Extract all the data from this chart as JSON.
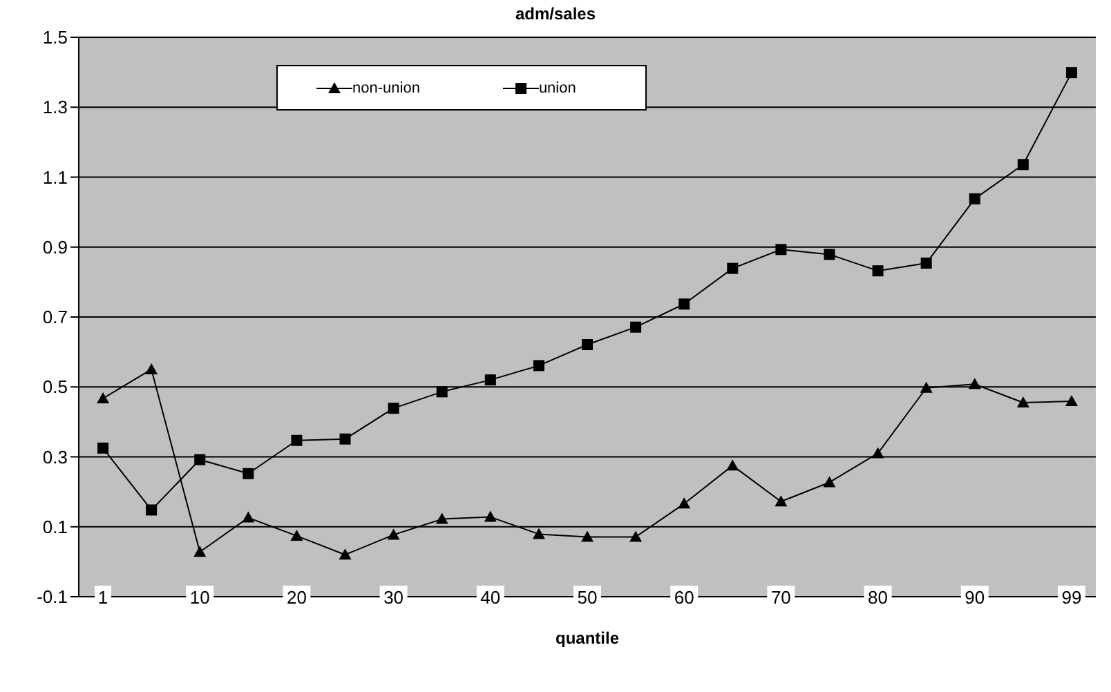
{
  "chart_data": {
    "type": "line",
    "title": "adm/sales",
    "xlabel": "quantile",
    "categories": [
      "1",
      null,
      "10",
      null,
      "20",
      null,
      "30",
      null,
      "40",
      null,
      "50",
      null,
      "60",
      null,
      "70",
      null,
      "80",
      null,
      "90",
      null,
      "99"
    ],
    "series": [
      {
        "name": "non-union",
        "color": "#000000",
        "marker": "triangle",
        "values": [
          0.467,
          0.55,
          0.028,
          0.126,
          0.074,
          0.02,
          0.077,
          0.122,
          0.128,
          0.079,
          0.071,
          0.071,
          0.166,
          0.275,
          0.172,
          0.227,
          0.31,
          0.497,
          0.508,
          0.455,
          0.459
        ]
      },
      {
        "name": "union",
        "color": "#000000",
        "marker": "square",
        "values": [
          0.325,
          0.148,
          0.292,
          0.252,
          0.347,
          0.351,
          0.439,
          0.486,
          0.52,
          0.561,
          0.621,
          0.671,
          0.737,
          0.839,
          0.893,
          0.879,
          0.832,
          0.854,
          1.038,
          1.136,
          1.399
        ]
      }
    ],
    "ylim": [
      -0.1,
      1.5
    ],
    "yticks": [
      -0.1,
      0.1,
      0.3,
      0.5,
      0.7,
      0.9,
      1.1,
      1.3,
      1.5
    ],
    "grid": "y",
    "legend": "top",
    "line_style": "solid"
  }
}
